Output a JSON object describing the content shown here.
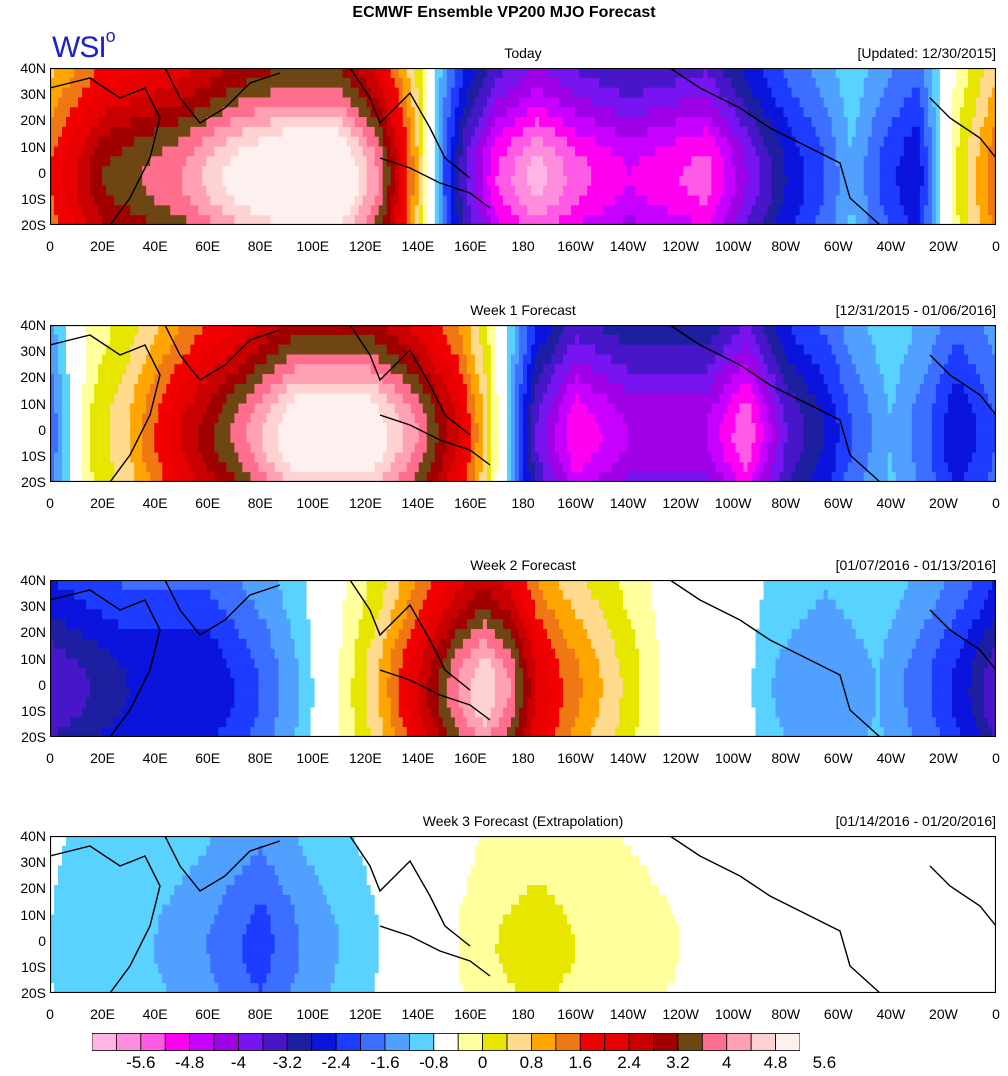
{
  "title": "ECMWF Ensemble VP200 MJO Forecast",
  "logo": {
    "text": "WSI",
    "mark": "o"
  },
  "lat_labels": [
    "40N",
    "30N",
    "20N",
    "10N",
    "0",
    "10S",
    "20S"
  ],
  "lon_labels": [
    "0",
    "20E",
    "40E",
    "60E",
    "80E",
    "100E",
    "120E",
    "140E",
    "160E",
    "180",
    "160W",
    "140W",
    "120W",
    "100W",
    "80W",
    "60W",
    "40W",
    "20W",
    "0"
  ],
  "panels": [
    {
      "title": "Today",
      "date": "[Updated: 12/30/2015]",
      "anomaly_profile": [
        [
          0,
          2.4
        ],
        [
          20,
          4.0
        ],
        [
          50,
          4.8
        ],
        [
          70,
          5.8
        ],
        [
          90,
          6.4
        ],
        [
          110,
          6.4
        ],
        [
          125,
          4.8
        ],
        [
          133,
          3.2
        ],
        [
          140,
          1.6
        ],
        [
          145,
          0
        ],
        [
          150,
          -1.6
        ],
        [
          158,
          -3.2
        ],
        [
          170,
          -4.8
        ],
        [
          185,
          -5.8
        ],
        [
          200,
          -5.0
        ],
        [
          220,
          -4.4
        ],
        [
          250,
          -5.0
        ],
        [
          265,
          -3.6
        ],
        [
          280,
          -2.4
        ],
        [
          295,
          -1.6
        ],
        [
          305,
          -0.8
        ],
        [
          315,
          -1.6
        ],
        [
          330,
          -2.4
        ],
        [
          345,
          0.8
        ],
        [
          360,
          2.4
        ]
      ]
    },
    {
      "title": "Week 1 Forecast",
      "date": "[12/31/2015 - 01/06/2016]",
      "anomaly_profile": [
        [
          0,
          -1.6
        ],
        [
          15,
          0.8
        ],
        [
          30,
          1.6
        ],
        [
          50,
          3.2
        ],
        [
          75,
          4.8
        ],
        [
          95,
          6.2
        ],
        [
          120,
          6.2
        ],
        [
          140,
          4.8
        ],
        [
          155,
          3.2
        ],
        [
          165,
          1.6
        ],
        [
          172,
          0
        ],
        [
          178,
          -1.6
        ],
        [
          185,
          -3.2
        ],
        [
          200,
          -4.8
        ],
        [
          220,
          -4.0
        ],
        [
          250,
          -4.0
        ],
        [
          265,
          -5.2
        ],
        [
          280,
          -3.2
        ],
        [
          295,
          -2.4
        ],
        [
          305,
          -1.6
        ],
        [
          320,
          -0.8
        ],
        [
          335,
          -1.6
        ],
        [
          345,
          -2.4
        ],
        [
          360,
          -1.6
        ]
      ]
    },
    {
      "title": "Week 2 Forecast",
      "date": "[01/07/2016 - 01/13/2016]",
      "anomaly_profile": [
        [
          0,
          -3.2
        ],
        [
          30,
          -2.4
        ],
        [
          60,
          -2.4
        ],
        [
          80,
          -1.6
        ],
        [
          95,
          -0.8
        ],
        [
          105,
          0
        ],
        [
          115,
          0.8
        ],
        [
          125,
          1.6
        ],
        [
          140,
          3.2
        ],
        [
          155,
          4.8
        ],
        [
          165,
          5.6
        ],
        [
          175,
          4.8
        ],
        [
          185,
          3.2
        ],
        [
          195,
          2.4
        ],
        [
          210,
          1.6
        ],
        [
          225,
          0.8
        ],
        [
          240,
          0
        ],
        [
          260,
          0
        ],
        [
          275,
          -0.8
        ],
        [
          295,
          -1.2
        ],
        [
          315,
          -0.8
        ],
        [
          335,
          -1.6
        ],
        [
          350,
          -2.4
        ],
        [
          360,
          -3.2
        ]
      ]
    },
    {
      "title": "Week 3 Forecast (Extrapolation)",
      "date": "[01/14/2016 - 01/20/2016]",
      "anomaly_profile": [
        [
          0,
          -0.4
        ],
        [
          10,
          -0.8
        ],
        [
          40,
          -0.8
        ],
        [
          60,
          -1.2
        ],
        [
          80,
          -1.8
        ],
        [
          95,
          -1.2
        ],
        [
          110,
          -0.8
        ],
        [
          125,
          -0.4
        ],
        [
          140,
          0
        ],
        [
          155,
          0.4
        ],
        [
          170,
          0.8
        ],
        [
          185,
          1.0
        ],
        [
          200,
          0.8
        ],
        [
          220,
          0.6
        ],
        [
          240,
          0.4
        ],
        [
          255,
          0
        ],
        [
          270,
          0
        ],
        [
          300,
          0
        ],
        [
          330,
          0
        ],
        [
          355,
          0
        ],
        [
          360,
          -0.4
        ]
      ]
    }
  ],
  "colorbar": {
    "labels": [
      "-5.6",
      "-4.8",
      "-4",
      "-3.2",
      "-2.4",
      "-1.6",
      "-0.8",
      "0",
      "0.8",
      "1.6",
      "2.4",
      "3.2",
      "4",
      "4.8",
      "5.6"
    ],
    "colors": [
      "#ffb4e6",
      "#ff8cdc",
      "#ff5ae6",
      "#ff00f0",
      "#c800ff",
      "#a000e6",
      "#7814f0",
      "#4616c8",
      "#1e1ea0",
      "#0a14dc",
      "#1e3cff",
      "#3c6eff",
      "#50a0ff",
      "#5ad2ff",
      "#ffffff",
      "#ffff9c",
      "#e6e600",
      "#ffd98c",
      "#ffa500",
      "#f07814",
      "#f00000",
      "#e60000",
      "#c80000",
      "#a00000",
      "#6e4614",
      "#ff6e8c",
      "#ffa0b4",
      "#ffd2d2",
      "#fff0f0"
    ],
    "bounds": [
      -6.0,
      -5.6,
      -5.2,
      -4.8,
      -4.4,
      -4.0,
      -3.6,
      -3.2,
      -2.8,
      -2.4,
      -2.0,
      -1.6,
      -1.2,
      -0.8,
      -0.4,
      0.4,
      0.8,
      1.2,
      1.6,
      2.0,
      2.4,
      2.8,
      3.2,
      3.6,
      4.0,
      4.4,
      4.8,
      5.2,
      5.6,
      6.0
    ]
  }
}
